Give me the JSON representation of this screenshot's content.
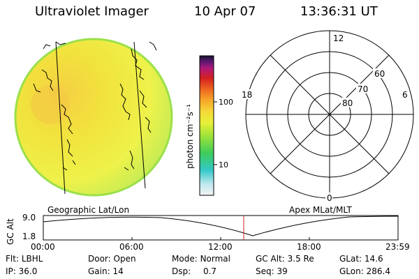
{
  "header": {
    "instrument": "Ultraviolet Imager",
    "date": "10 Apr 07",
    "time": "13:36:31 UT"
  },
  "colorbar": {
    "unit_label": "photon cm⁻²s⁻¹",
    "ticks": [
      "100",
      "10"
    ]
  },
  "polar": {
    "clock_labels": [
      "12",
      "18",
      "6",
      "0"
    ],
    "lat_labels": [
      "60",
      "70",
      "80"
    ]
  },
  "panels": {
    "left_label": "Geographic Lat/Lon",
    "right_label": "Apex MLat/MLT"
  },
  "altitude_plot": {
    "ylabel": "GC Alt",
    "yticks": [
      "9.0",
      "1.8"
    ],
    "xticks": [
      "00:00",
      "06:00",
      "12:00",
      "18:00",
      "23:59"
    ],
    "current_marker_time": "13:36"
  },
  "info": {
    "row1": [
      {
        "label": "Flt:",
        "value": "LBHL"
      },
      {
        "label": "Door:",
        "value": "Open"
      },
      {
        "label": "Mode:",
        "value": "Normal"
      },
      {
        "label": "GC Alt:",
        "value": "3.5 Re"
      },
      {
        "label": "GLat:",
        "value": "14.6"
      }
    ],
    "row2": [
      {
        "label": "IP:",
        "value": "36.0"
      },
      {
        "label": "Gain:",
        "value": "14"
      },
      {
        "label": "Dsp:",
        "value": "0.7"
      },
      {
        "label": "Seq:",
        "value": "39"
      },
      {
        "label": "GLon:",
        "value": "286.4"
      }
    ]
  },
  "colors": {
    "disk_main": "#f0ee3c",
    "disk_edge": "#a8e04a",
    "marker": "#cc2222"
  }
}
